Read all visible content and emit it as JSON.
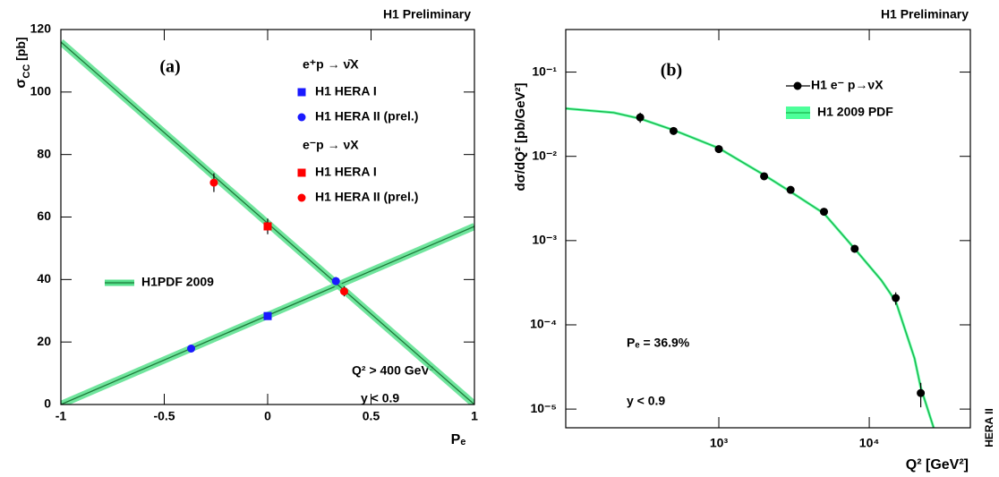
{
  "chart_data": [
    {
      "type": "scatter",
      "title": "H1 Preliminary",
      "panel_label": "(a)",
      "ylabel": [
        "σ",
        "CC",
        " [pb]"
      ],
      "xlabel": "Pₑ",
      "xlim": [
        -1,
        1
      ],
      "ylim": [
        0,
        120
      ],
      "xticks": [
        -1,
        -0.5,
        0,
        0.5,
        1
      ],
      "yticks": [
        0,
        20,
        40,
        60,
        80,
        100,
        120
      ],
      "legend_groups": [
        "e⁺p → ν̄X",
        "e⁻p → νX"
      ],
      "series": [
        {
          "name": "H1 HERA I",
          "group": 0,
          "marker": "square",
          "color": "#1a1aff",
          "x": [
            0
          ],
          "values": [
            28.3
          ],
          "errors": [
            0.9
          ]
        },
        {
          "name": "H1 HERA II (prel.)",
          "group": 0,
          "marker": "circle",
          "color": "#1a1aff",
          "x": [
            -0.37,
            0.33
          ],
          "values": [
            17.9,
            39.5
          ],
          "errors": [
            0.6,
            1.3
          ]
        },
        {
          "name": "H1 HERA I",
          "group": 1,
          "marker": "square",
          "color": "#ff0000",
          "x": [
            0
          ],
          "values": [
            57
          ],
          "errors": [
            2.5
          ]
        },
        {
          "name": "H1 HERA II (prel.)",
          "group": 1,
          "marker": "circle",
          "color": "#ff0000",
          "x": [
            -0.26,
            0.37
          ],
          "values": [
            71,
            36.2
          ],
          "errors": [
            3.0,
            1.6
          ]
        }
      ],
      "model": {
        "name": "H1PDF 2009",
        "color": "#1d7a3a",
        "band_color": "#57e08c",
        "lines": [
          {
            "x": [
              -1,
              1
            ],
            "values": [
              0,
              57
            ]
          },
          {
            "x": [
              -1,
              1
            ],
            "values": [
              116,
              0
            ]
          }
        ]
      },
      "annotations": [
        "Q² > 400 GeV²",
        "y < 0.9"
      ]
    },
    {
      "type": "scatter",
      "title": "H1 Preliminary",
      "panel_label": "(b)",
      "ylabel": "dσ/dQ² [pb/GeV²]",
      "xlabel": "Q² [GeV²]",
      "side_label": "HERA II",
      "xscale": "log",
      "yscale": "log",
      "xlim": [
        96,
        47000
      ],
      "ylim": [
        6e-06,
        0.32
      ],
      "xticks": [
        {
          "value": 1000,
          "label": "10³"
        },
        {
          "value": 10000,
          "label": "10⁴"
        }
      ],
      "yticks": [
        {
          "value": 1e-05,
          "label": "10⁻⁵"
        },
        {
          "value": 0.0001,
          "label": "10⁻⁴"
        },
        {
          "value": 0.001,
          "label": "10⁻³"
        },
        {
          "value": 0.01,
          "label": "10⁻²"
        },
        {
          "value": 0.1,
          "label": "10⁻¹"
        }
      ],
      "series": [
        {
          "name": "H1 e⁻ p→νX",
          "marker": "circle",
          "color": "#000000",
          "x": [
            300,
            500,
            1000,
            2000,
            3000,
            5000,
            8000,
            15000,
            22000
          ],
          "values": [
            0.029,
            0.02,
            0.0122,
            0.0058,
            0.004,
            0.0022,
            0.0008,
            0.000208,
            1.55e-05
          ],
          "errors": [
            0.004,
            0.0015,
            0.0006,
            0.0003,
            0.0002,
            0.00012,
            8e-05,
            3.5e-05,
            5e-06
          ]
        }
      ],
      "model": {
        "name": "H1 2009 PDF",
        "color": "#19b34a",
        "band_color": "#4dff9a",
        "lines": [
          {
            "x": [
              96,
              200,
              300,
              500,
              1000,
              2000,
              3000,
              5000,
              8000,
              12000,
              15000,
              20000,
              22000,
              26800
            ],
            "values": [
              0.037,
              0.033,
              0.028,
              0.0205,
              0.0125,
              0.006,
              0.0038,
              0.0021,
              0.0008,
              0.00034,
              0.00019,
              4e-05,
              1.8e-05,
              6e-06
            ]
          }
        ]
      },
      "annotations": [
        "Pₑ = 36.9%",
        "y < 0.9"
      ]
    }
  ]
}
